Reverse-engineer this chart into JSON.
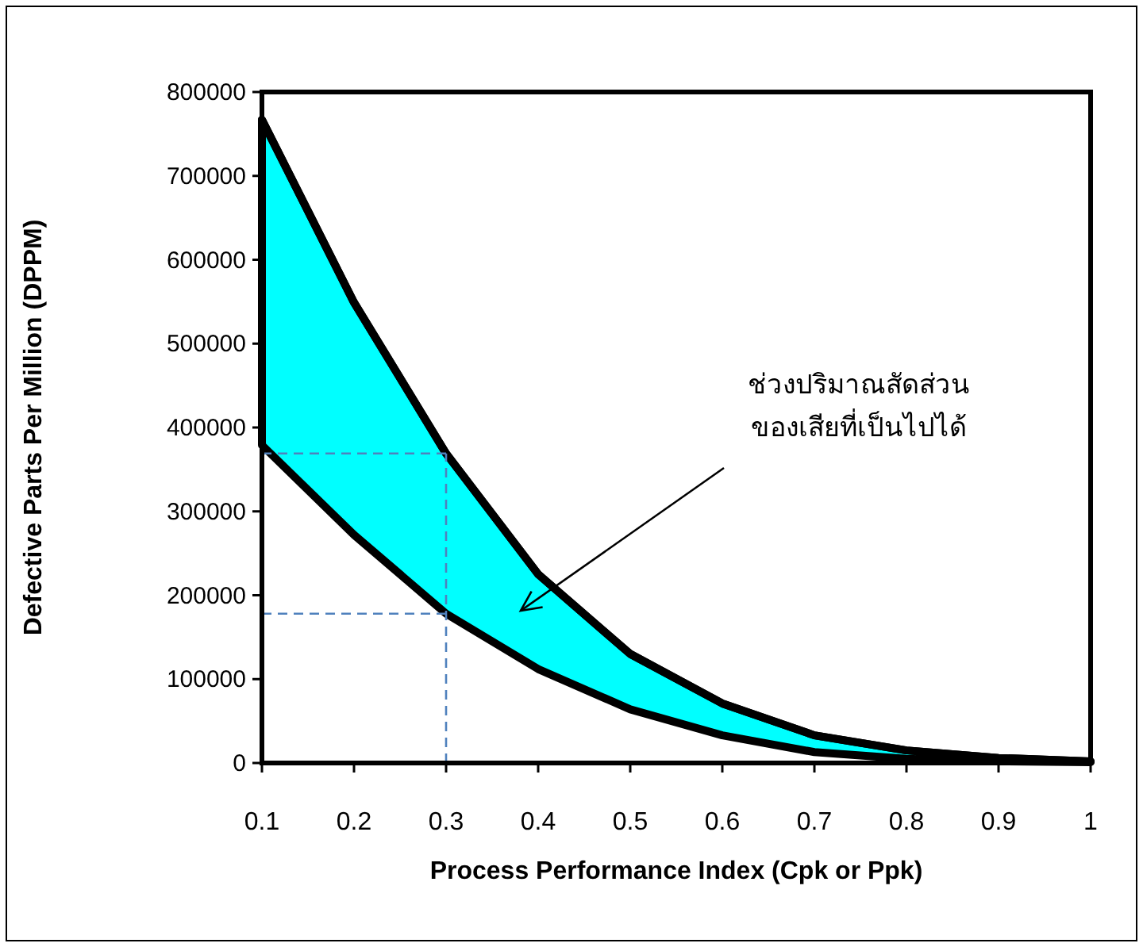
{
  "chart_data": {
    "type": "line",
    "xlabel": "Process Performance Index (Cpk or Ppk)",
    "ylabel": "Defective Parts Per Million (DPPM)",
    "x": [
      0.1,
      0.2,
      0.3,
      0.4,
      0.5,
      0.6,
      0.7,
      0.8,
      0.9,
      1
    ],
    "series": [
      {
        "color": "#000000",
        "values": [
          767000,
          549000,
          369000,
          225000,
          130000,
          71000,
          33000,
          15000,
          6000,
          2000
        ],
        "lower": [
          379000,
          272000,
          178000,
          112000,
          64000,
          33000,
          13000,
          5000,
          2000,
          1000
        ],
        "upper": [
          767000,
          549000,
          369000,
          225000,
          130000,
          71000,
          33000,
          15000,
          6000,
          2000
        ]
      }
    ],
    "xlim": [
      0.1,
      1
    ],
    "xticks": [
      0.1,
      0.2,
      0.3,
      0.4,
      0.5,
      0.6,
      0.7,
      0.8,
      0.9,
      1
    ],
    "ylim": [
      0,
      800000
    ],
    "yticks": [
      0,
      100000,
      200000,
      300000,
      400000,
      500000,
      600000,
      700000,
      800000
    ],
    "ref_lines": [
      {
        "axis": "x",
        "value": 0.3,
        "color": "#4f81bd",
        "line_style": "dashed"
      },
      {
        "axis": "y",
        "value": 369000,
        "color": "#4f81bd",
        "line_style": "dashed"
      },
      {
        "axis": "y",
        "value": 178000,
        "color": "#4f81bd",
        "line_style": "dashed"
      }
    ],
    "annotations": [
      "ช่วงปริมาณสัดส่วน\nของเสียที่เป็นไปได้"
    ],
    "grid": false
  }
}
